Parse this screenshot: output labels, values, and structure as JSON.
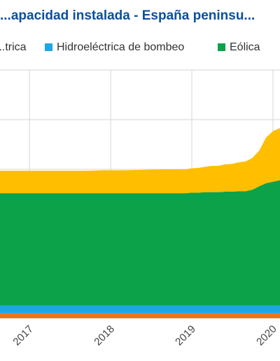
{
  "colors": {
    "title": "#0b4fa0",
    "grid": "#d6d6d6",
    "background": "#ffffff"
  },
  "chart_data": {
    "type": "area",
    "stacked": true,
    "title": "...apacidad instalada - España peninsu...",
    "x_tick_labels": [
      "2017",
      "2018",
      "2019",
      "2020"
    ],
    "x": [
      "2016-06",
      "2016-09",
      "2016-12",
      "2017-03",
      "2017-06",
      "2017-09",
      "2017-12",
      "2018-03",
      "2018-06",
      "2018-09",
      "2018-12",
      "2019-01",
      "2019-02",
      "2019-03",
      "2019-04",
      "2019-05",
      "2019-06",
      "2019-07",
      "2019-08",
      "2019-09",
      "2019-10",
      "2019-11",
      "2019-12",
      "2020-01",
      "2020-02"
    ],
    "legend_position": "top",
    "grid": true,
    "series": [
      {
        "name": "",
        "color": "#e8761c",
        "values": [
          1.0,
          1.0,
          1.0,
          1.0,
          1.0,
          1.0,
          1.0,
          1.0,
          1.0,
          1.0,
          1.0,
          1.0,
          1.0,
          1.0,
          1.0,
          1.0,
          1.0,
          1.0,
          1.0,
          1.0,
          1.0,
          1.0,
          1.0,
          1.0,
          1.0
        ]
      },
      {
        "name": "Hidroeléctrica de bombeo",
        "color": "#1ea6e4",
        "values": [
          1.6,
          1.6,
          1.6,
          1.6,
          1.6,
          1.6,
          1.6,
          1.6,
          1.6,
          1.6,
          1.6,
          1.6,
          1.6,
          1.6,
          1.6,
          1.6,
          1.6,
          1.6,
          1.6,
          1.6,
          1.6,
          1.6,
          1.6,
          1.6,
          1.6
        ]
      },
      {
        "name": "Eólica",
        "color": "#0ba249",
        "values": [
          22.6,
          22.6,
          22.6,
          22.6,
          22.6,
          22.6,
          22.6,
          22.6,
          22.6,
          22.6,
          22.6,
          22.7,
          22.7,
          22.8,
          22.8,
          22.8,
          22.9,
          22.9,
          23.0,
          23.0,
          23.3,
          24.0,
          24.6,
          24.9,
          25.2
        ]
      },
      {
        "name": "...trica",
        "color": "#ffbe00",
        "values": [
          4.5,
          4.5,
          4.5,
          4.5,
          4.5,
          4.5,
          4.6,
          4.6,
          4.7,
          4.8,
          4.8,
          4.9,
          5.0,
          5.1,
          5.3,
          5.3,
          5.5,
          5.6,
          5.8,
          6.0,
          6.4,
          7.2,
          9.2,
          10.2,
          10.5
        ]
      }
    ]
  }
}
